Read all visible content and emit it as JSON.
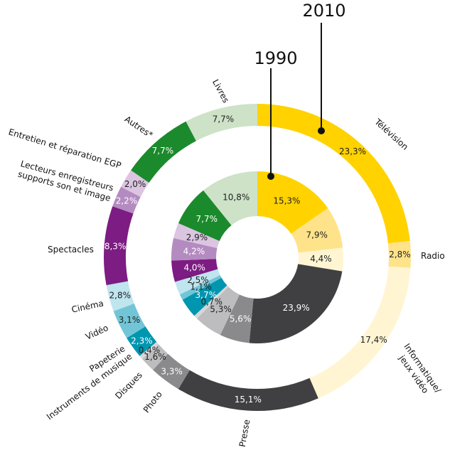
{
  "chart_data": {
    "type": "pie",
    "variant": "nested-donut",
    "title": "",
    "start_angle_deg": 0,
    "series": [
      {
        "name": "1990",
        "values": [
          15.3,
          7.9,
          4.4,
          23.9,
          5.6,
          5.3,
          0.7,
          3.7,
          1.1,
          2.5,
          4.0,
          4.2,
          2.9,
          7.7,
          10.8
        ],
        "labels": [
          "15,3%",
          "7,9%",
          "4,4%",
          "23,9%",
          "5,6%",
          "5,3%",
          "0,7%",
          "3,7%",
          "1,1%",
          "2,5%",
          "4,0%",
          "4,2%",
          "2,9%",
          "7,7%",
          "10,8%"
        ]
      },
      {
        "name": "2010",
        "values": [
          23.3,
          2.8,
          17.4,
          15.1,
          3.3,
          1.6,
          0.4,
          2.3,
          3.1,
          2.8,
          8.3,
          2.2,
          2.0,
          7.7,
          7.7
        ],
        "labels": [
          "23,3%",
          "2,8%",
          "17,4%",
          "15,1%",
          "3,3%",
          "1,6%",
          "0,4%",
          "2,3%",
          "3,1%",
          "2,8%",
          "8,3%",
          "2,2%",
          "2,0%",
          "7,7%",
          "7,7%"
        ]
      }
    ],
    "categories": [
      "Télévision",
      "Radio",
      "Informatique/jeux vidéo",
      "Presse",
      "Photo",
      "Disques",
      "Instruments de musique",
      "Papeterie",
      "Vidéo",
      "Cinéma",
      "Spectacles",
      "Lecteurs enregistreurs supports son et image",
      "Entretien et réparation EGP",
      "Autres*",
      "Livres"
    ],
    "category_labels": {
      "television": "Télévision",
      "radio": "Radio",
      "informatique_1": "Informatique/",
      "informatique_2": "jeux vidéo",
      "presse": "Presse",
      "photo": "Photo",
      "disques": "Disques",
      "instruments": "Instruments de musique",
      "papeterie": "Papeterie",
      "video": "Vidéo",
      "cinema": "Cinéma",
      "spectacles": "Spectacles",
      "lecteurs_1": "Lecteurs enregistreurs",
      "lecteurs_2": "supports son et image",
      "entretien": "Entretien et réparation EGP",
      "autres": "Autres*",
      "livres": "Livres"
    },
    "colors": [
      "#ffd200",
      "#ffe38a",
      "#fff5d2",
      "#404042",
      "#8a8a8c",
      "#bdbdbf",
      "#d7d7d9",
      "#0096b0",
      "#72c5d6",
      "#bfe5ee",
      "#7d1c82",
      "#b48bc0",
      "#dbc5e1",
      "#1b8a2c",
      "#cde2c7"
    ],
    "text_colors": [
      "#222222",
      "#222222",
      "#222222",
      "#ffffff",
      "#ffffff",
      "#222222",
      "#222222",
      "#ffffff",
      "#222222",
      "#222222",
      "#ffffff",
      "#ffffff",
      "#222222",
      "#ffffff",
      "#222222"
    ],
    "legend": "none"
  }
}
